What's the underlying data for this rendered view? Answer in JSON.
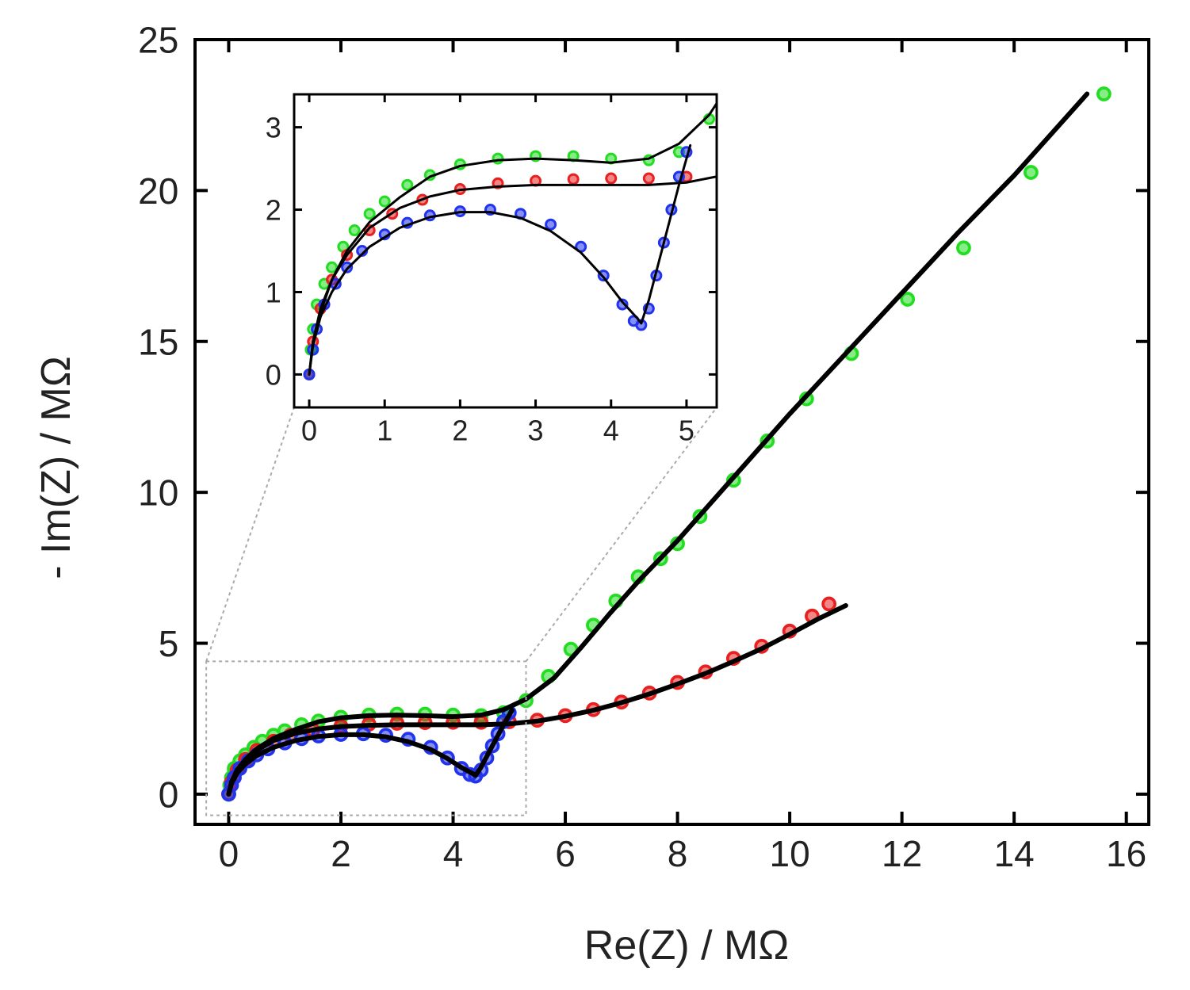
{
  "chart_data": {
    "type": "scatter",
    "title": "",
    "xlabel": "Re(Z) / MΩ",
    "ylabel": "- Im(Z) / MΩ",
    "xlim": [
      -0.6,
      16.4
    ],
    "ylim": [
      -1.0,
      25.0
    ],
    "xticks": [
      0,
      2,
      4,
      6,
      8,
      10,
      12,
      14,
      16
    ],
    "yticks": [
      0,
      5,
      10,
      15,
      20,
      25
    ],
    "colors": {
      "green": "#22dd22",
      "red": "#e82020",
      "blue": "#2233ee",
      "fit": "#000000"
    },
    "series": [
      {
        "name": "green",
        "color": "#22dd22",
        "points": [
          [
            0.0,
            0.0
          ],
          [
            0.02,
            0.3
          ],
          [
            0.05,
            0.55
          ],
          [
            0.1,
            0.85
          ],
          [
            0.2,
            1.1
          ],
          [
            0.3,
            1.3
          ],
          [
            0.45,
            1.55
          ],
          [
            0.6,
            1.75
          ],
          [
            0.8,
            1.95
          ],
          [
            1.0,
            2.1
          ],
          [
            1.3,
            2.3
          ],
          [
            1.6,
            2.42
          ],
          [
            2.0,
            2.55
          ],
          [
            2.5,
            2.62
          ],
          [
            3.0,
            2.65
          ],
          [
            3.5,
            2.65
          ],
          [
            4.0,
            2.62
          ],
          [
            4.5,
            2.6
          ],
          [
            4.9,
            2.7
          ],
          [
            5.3,
            3.1
          ],
          [
            5.7,
            3.9
          ],
          [
            6.1,
            4.8
          ],
          [
            6.5,
            5.6
          ],
          [
            6.9,
            6.4
          ],
          [
            7.3,
            7.2
          ],
          [
            7.7,
            7.8
          ],
          [
            8.0,
            8.3
          ],
          [
            8.4,
            9.2
          ],
          [
            9.0,
            10.4
          ],
          [
            9.6,
            11.7
          ],
          [
            10.3,
            13.1
          ],
          [
            11.1,
            14.6
          ],
          [
            12.1,
            16.4
          ],
          [
            13.1,
            18.1
          ],
          [
            14.3,
            20.6
          ],
          [
            15.6,
            23.2
          ]
        ]
      },
      {
        "name": "red",
        "color": "#e82020",
        "points": [
          [
            0.0,
            0.0
          ],
          [
            0.05,
            0.4
          ],
          [
            0.15,
            0.8
          ],
          [
            0.3,
            1.15
          ],
          [
            0.5,
            1.45
          ],
          [
            0.8,
            1.75
          ],
          [
            1.1,
            1.95
          ],
          [
            1.5,
            2.12
          ],
          [
            2.0,
            2.25
          ],
          [
            2.5,
            2.32
          ],
          [
            3.0,
            2.35
          ],
          [
            3.5,
            2.37
          ],
          [
            4.0,
            2.38
          ],
          [
            4.5,
            2.38
          ],
          [
            5.0,
            2.4
          ],
          [
            5.5,
            2.45
          ],
          [
            6.0,
            2.6
          ],
          [
            6.5,
            2.8
          ],
          [
            7.0,
            3.05
          ],
          [
            7.5,
            3.35
          ],
          [
            8.0,
            3.7
          ],
          [
            8.5,
            4.05
          ],
          [
            9.0,
            4.5
          ],
          [
            9.5,
            4.9
          ],
          [
            10.0,
            5.4
          ],
          [
            10.4,
            5.9
          ],
          [
            10.7,
            6.3
          ]
        ]
      },
      {
        "name": "blue",
        "color": "#2233ee",
        "points": [
          [
            0.0,
            0.0
          ],
          [
            0.05,
            0.3
          ],
          [
            0.1,
            0.55
          ],
          [
            0.2,
            0.85
          ],
          [
            0.35,
            1.1
          ],
          [
            0.5,
            1.3
          ],
          [
            0.7,
            1.5
          ],
          [
            1.0,
            1.7
          ],
          [
            1.3,
            1.84
          ],
          [
            1.6,
            1.93
          ],
          [
            2.0,
            1.98
          ],
          [
            2.4,
            2.0
          ],
          [
            2.8,
            1.95
          ],
          [
            3.2,
            1.82
          ],
          [
            3.6,
            1.55
          ],
          [
            3.9,
            1.2
          ],
          [
            4.15,
            0.85
          ],
          [
            4.3,
            0.65
          ],
          [
            4.4,
            0.6
          ],
          [
            4.5,
            0.8
          ],
          [
            4.6,
            1.2
          ],
          [
            4.7,
            1.6
          ],
          [
            4.8,
            2.0
          ],
          [
            4.9,
            2.4
          ],
          [
            5.0,
            2.7
          ]
        ]
      }
    ],
    "fits": [
      {
        "name": "green-fit",
        "points": [
          [
            0.0,
            0.0
          ],
          [
            0.05,
            0.4
          ],
          [
            0.15,
            0.75
          ],
          [
            0.3,
            1.15
          ],
          [
            0.5,
            1.5
          ],
          [
            0.8,
            1.85
          ],
          [
            1.2,
            2.15
          ],
          [
            1.6,
            2.4
          ],
          [
            2.0,
            2.53
          ],
          [
            2.5,
            2.6
          ],
          [
            3.0,
            2.62
          ],
          [
            3.5,
            2.6
          ],
          [
            4.0,
            2.57
          ],
          [
            4.5,
            2.62
          ],
          [
            4.9,
            2.8
          ],
          [
            5.3,
            3.15
          ],
          [
            5.8,
            3.85
          ],
          [
            6.3,
            4.9
          ],
          [
            6.8,
            6.0
          ],
          [
            7.3,
            7.05
          ],
          [
            8.0,
            8.4
          ],
          [
            9.0,
            10.5
          ],
          [
            10.0,
            12.6
          ],
          [
            11.0,
            14.6
          ],
          [
            12.0,
            16.6
          ],
          [
            13.0,
            18.6
          ],
          [
            14.0,
            20.5
          ],
          [
            15.3,
            23.2
          ]
        ]
      },
      {
        "name": "red-fit",
        "points": [
          [
            0.0,
            0.0
          ],
          [
            0.05,
            0.4
          ],
          [
            0.15,
            0.8
          ],
          [
            0.3,
            1.15
          ],
          [
            0.5,
            1.45
          ],
          [
            0.8,
            1.78
          ],
          [
            1.2,
            2.02
          ],
          [
            1.6,
            2.16
          ],
          [
            2.0,
            2.24
          ],
          [
            2.5,
            2.28
          ],
          [
            3.0,
            2.3
          ],
          [
            3.5,
            2.3
          ],
          [
            4.0,
            2.3
          ],
          [
            4.5,
            2.3
          ],
          [
            5.0,
            2.33
          ],
          [
            5.5,
            2.42
          ],
          [
            6.0,
            2.58
          ],
          [
            6.5,
            2.78
          ],
          [
            7.0,
            3.03
          ],
          [
            7.5,
            3.32
          ],
          [
            8.0,
            3.65
          ],
          [
            8.5,
            4.0
          ],
          [
            9.0,
            4.4
          ],
          [
            9.5,
            4.82
          ],
          [
            10.0,
            5.3
          ],
          [
            10.5,
            5.8
          ],
          [
            11.0,
            6.25
          ]
        ]
      },
      {
        "name": "blue-fit",
        "points": [
          [
            0.0,
            0.0
          ],
          [
            0.05,
            0.35
          ],
          [
            0.15,
            0.7
          ],
          [
            0.3,
            1.0
          ],
          [
            0.5,
            1.28
          ],
          [
            0.8,
            1.55
          ],
          [
            1.2,
            1.78
          ],
          [
            1.6,
            1.91
          ],
          [
            2.0,
            1.97
          ],
          [
            2.4,
            1.97
          ],
          [
            2.8,
            1.9
          ],
          [
            3.2,
            1.74
          ],
          [
            3.6,
            1.48
          ],
          [
            3.9,
            1.18
          ],
          [
            4.15,
            0.88
          ],
          [
            4.35,
            0.68
          ],
          [
            4.4,
            0.62
          ],
          [
            4.5,
            0.9
          ],
          [
            4.7,
            1.6
          ],
          [
            4.9,
            2.3
          ],
          [
            5.05,
            2.78
          ]
        ]
      }
    ],
    "inset": {
      "xlim": [
        -0.2,
        5.4
      ],
      "ylim": [
        -0.4,
        3.4
      ],
      "xticks": [
        0,
        1,
        2,
        3,
        4,
        5
      ],
      "yticks": [
        0,
        1,
        2,
        3
      ],
      "source_box": {
        "x": [
          -0.4,
          5.3
        ],
        "y": [
          -0.7,
          4.4
        ]
      }
    }
  }
}
